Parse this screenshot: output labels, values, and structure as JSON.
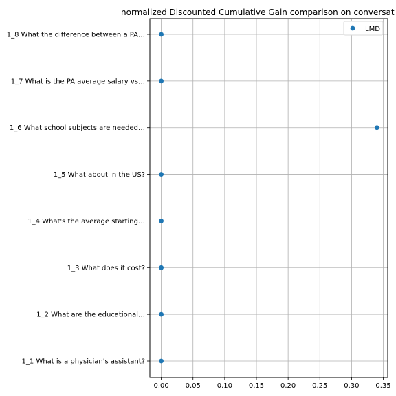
{
  "chart_data": {
    "type": "scatter",
    "title": "normalized Discounted Cumulative Gain comparison on conversat",
    "xlabel": "",
    "ylabel": "",
    "xlim": [
      -0.018,
      0.357
    ],
    "x_ticks": [
      0.0,
      0.05,
      0.1,
      0.15,
      0.2,
      0.25,
      0.3,
      0.35
    ],
    "x_tick_labels": [
      "0.00",
      "0.05",
      "0.10",
      "0.15",
      "0.20",
      "0.25",
      "0.30",
      "0.35"
    ],
    "categories": [
      "1_1 What is a physician's assistant?",
      "1_2 What are the educational…",
      "1_3 What does it cost?",
      "1_4 What's the average starting…",
      "1_5 What about in the US?",
      "1_6 What school subjects are needed…",
      "1_7 What is the PA average salary vs…",
      "1_8 What the difference between a PA…"
    ],
    "series": [
      {
        "name": "LMD",
        "color": "#1f77b4",
        "values": [
          0.0,
          0.0,
          0.0,
          0.0,
          0.0,
          0.34,
          0.0,
          0.0
        ]
      }
    ],
    "grid": true,
    "legend_position": "top-right"
  }
}
